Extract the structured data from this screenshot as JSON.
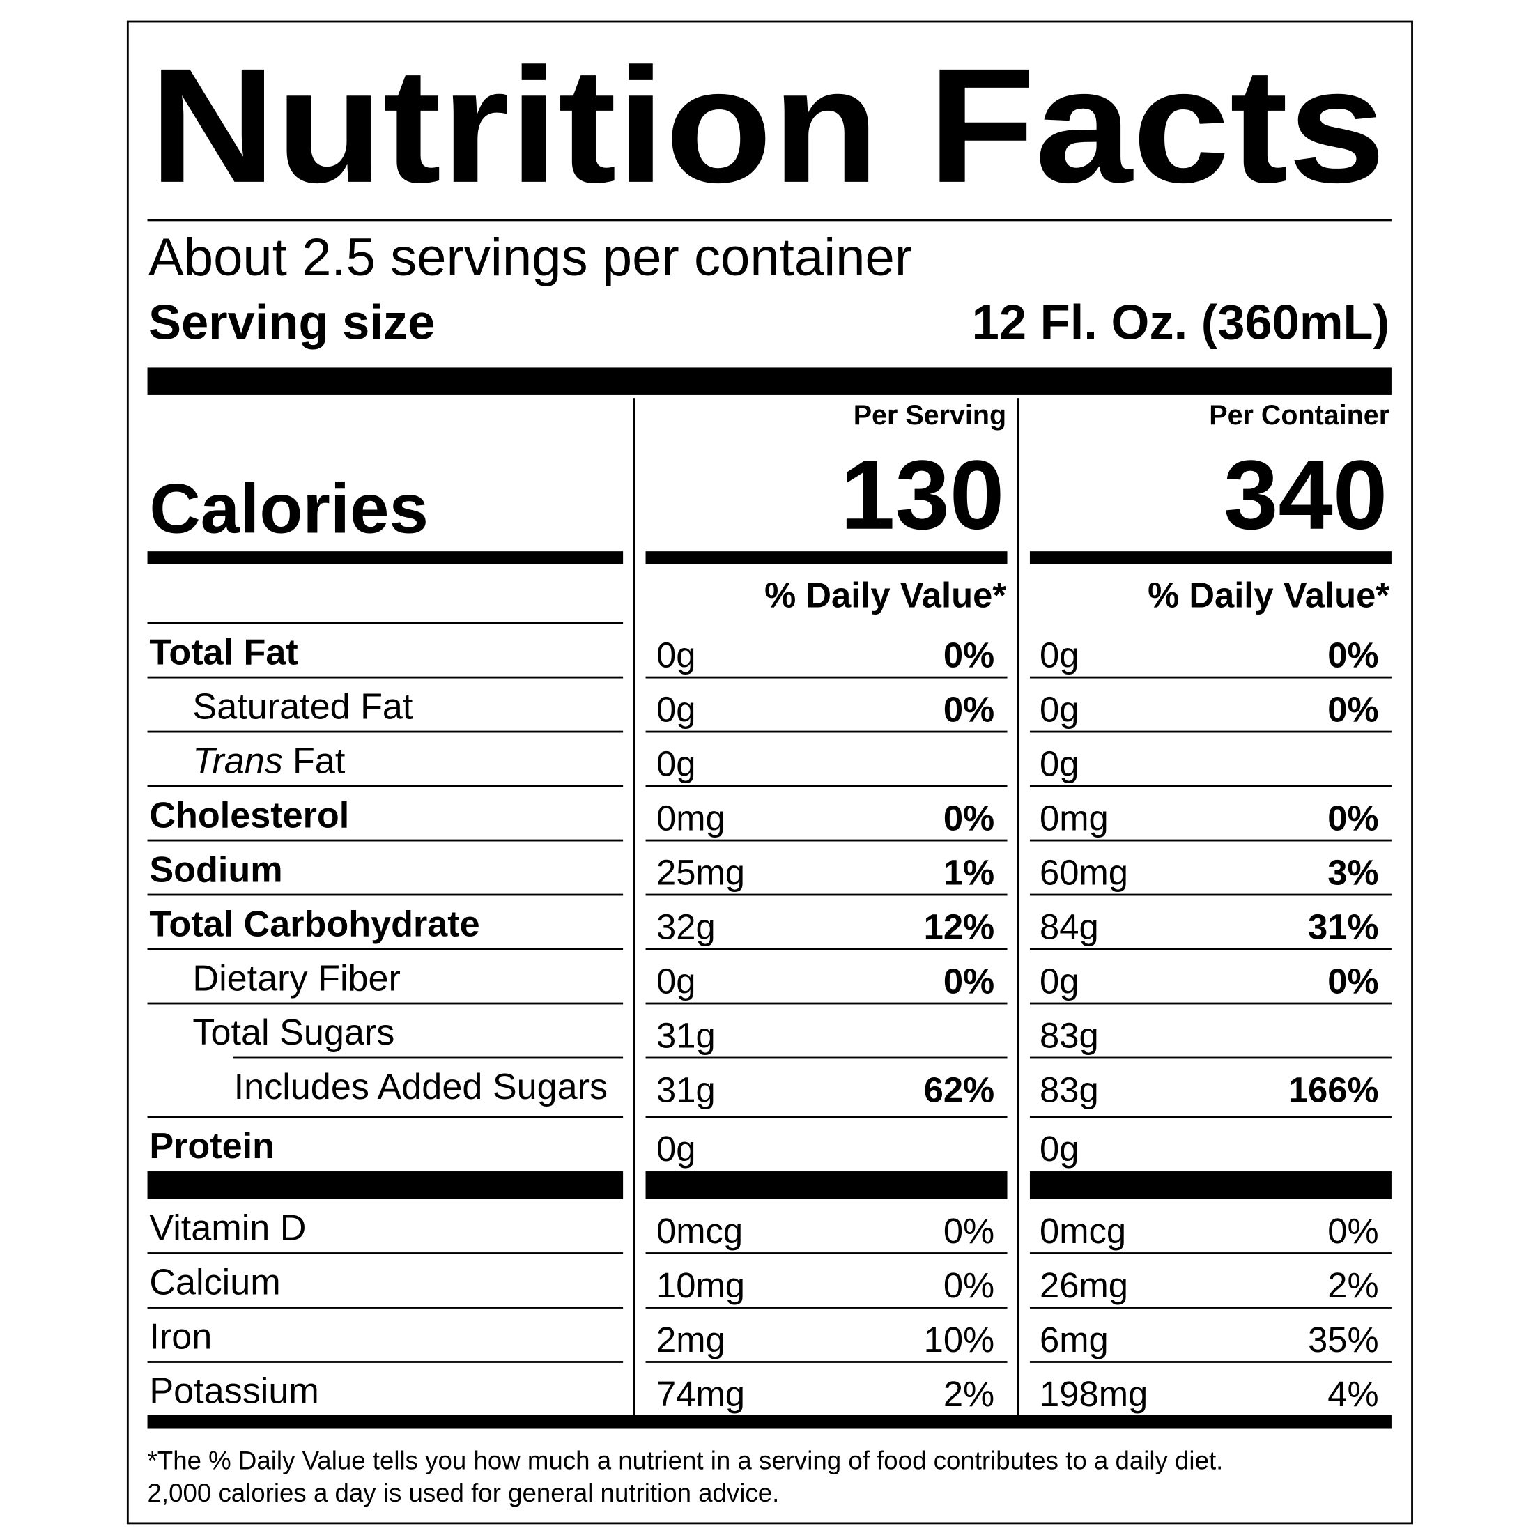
{
  "title": "Nutrition Facts",
  "servings": "About 2.5 servings per container",
  "serving_size": {
    "label": "Serving size",
    "value": "12 Fl. Oz. (360mL)"
  },
  "columns": [
    "Per Serving",
    "Per Container"
  ],
  "calories": {
    "label": "Calories",
    "values": [
      130,
      340
    ]
  },
  "daily_value_header": "% Daily Value*",
  "nutrients": [
    {
      "name": "Total Fat",
      "bold": true,
      "indent": 0,
      "values": [
        [
          "0g",
          "0%"
        ],
        [
          "0g",
          "0%"
        ]
      ]
    },
    {
      "name": "Saturated Fat",
      "bold": false,
      "indent": 1,
      "values": [
        [
          "0g",
          "0%"
        ],
        [
          "0g",
          "0%"
        ]
      ]
    },
    {
      "italic": "Trans",
      "name": "Fat",
      "bold": false,
      "indent": 1,
      "values": [
        [
          "0g",
          null
        ],
        [
          "0g",
          null
        ]
      ]
    },
    {
      "name": "Cholesterol",
      "bold": true,
      "indent": 0,
      "values": [
        [
          "0mg",
          "0%"
        ],
        [
          "0mg",
          "0%"
        ]
      ]
    },
    {
      "name": "Sodium",
      "bold": true,
      "indent": 0,
      "values": [
        [
          "25mg",
          "1%"
        ],
        [
          "60mg",
          "3%"
        ]
      ]
    },
    {
      "name": "Total Carbohydrate",
      "bold": true,
      "indent": 0,
      "values": [
        [
          "32g",
          "12%"
        ],
        [
          "84g",
          "31%"
        ]
      ]
    },
    {
      "name": "Dietary Fiber",
      "bold": false,
      "indent": 1,
      "values": [
        [
          "0g",
          "0%"
        ],
        [
          "0g",
          "0%"
        ]
      ]
    },
    {
      "name": "Total Sugars",
      "bold": false,
      "indent": 1,
      "values": [
        [
          "31g",
          null
        ],
        [
          "83g",
          null
        ]
      ]
    },
    {
      "name": "Includes Added Sugars",
      "bold": false,
      "indent": 2,
      "values": [
        [
          "31g",
          "62%"
        ],
        [
          "83g",
          "166%"
        ]
      ]
    },
    {
      "name": "Protein",
      "bold": true,
      "indent": 0,
      "values": [
        [
          "0g",
          null
        ],
        [
          "0g",
          null
        ]
      ]
    }
  ],
  "vitamins": [
    {
      "name": "Vitamin D",
      "values": [
        [
          "0mcg",
          "0%"
        ],
        [
          "0mcg",
          "0%"
        ]
      ]
    },
    {
      "name": "Calcium",
      "values": [
        [
          "10mg",
          "0%"
        ],
        [
          "26mg",
          "2%"
        ]
      ]
    },
    {
      "name": "Iron",
      "values": [
        [
          "2mg",
          "10%"
        ],
        [
          "6mg",
          "35%"
        ]
      ]
    },
    {
      "name": "Potassium",
      "values": [
        [
          "74mg",
          "2%"
        ],
        [
          "198mg",
          "4%"
        ]
      ]
    }
  ],
  "footnote": [
    "*The % Daily Value tells you how much a nutrient in a serving of food contributes to a daily diet.",
    "2,000 calories a day is used for general nutrition advice."
  ]
}
